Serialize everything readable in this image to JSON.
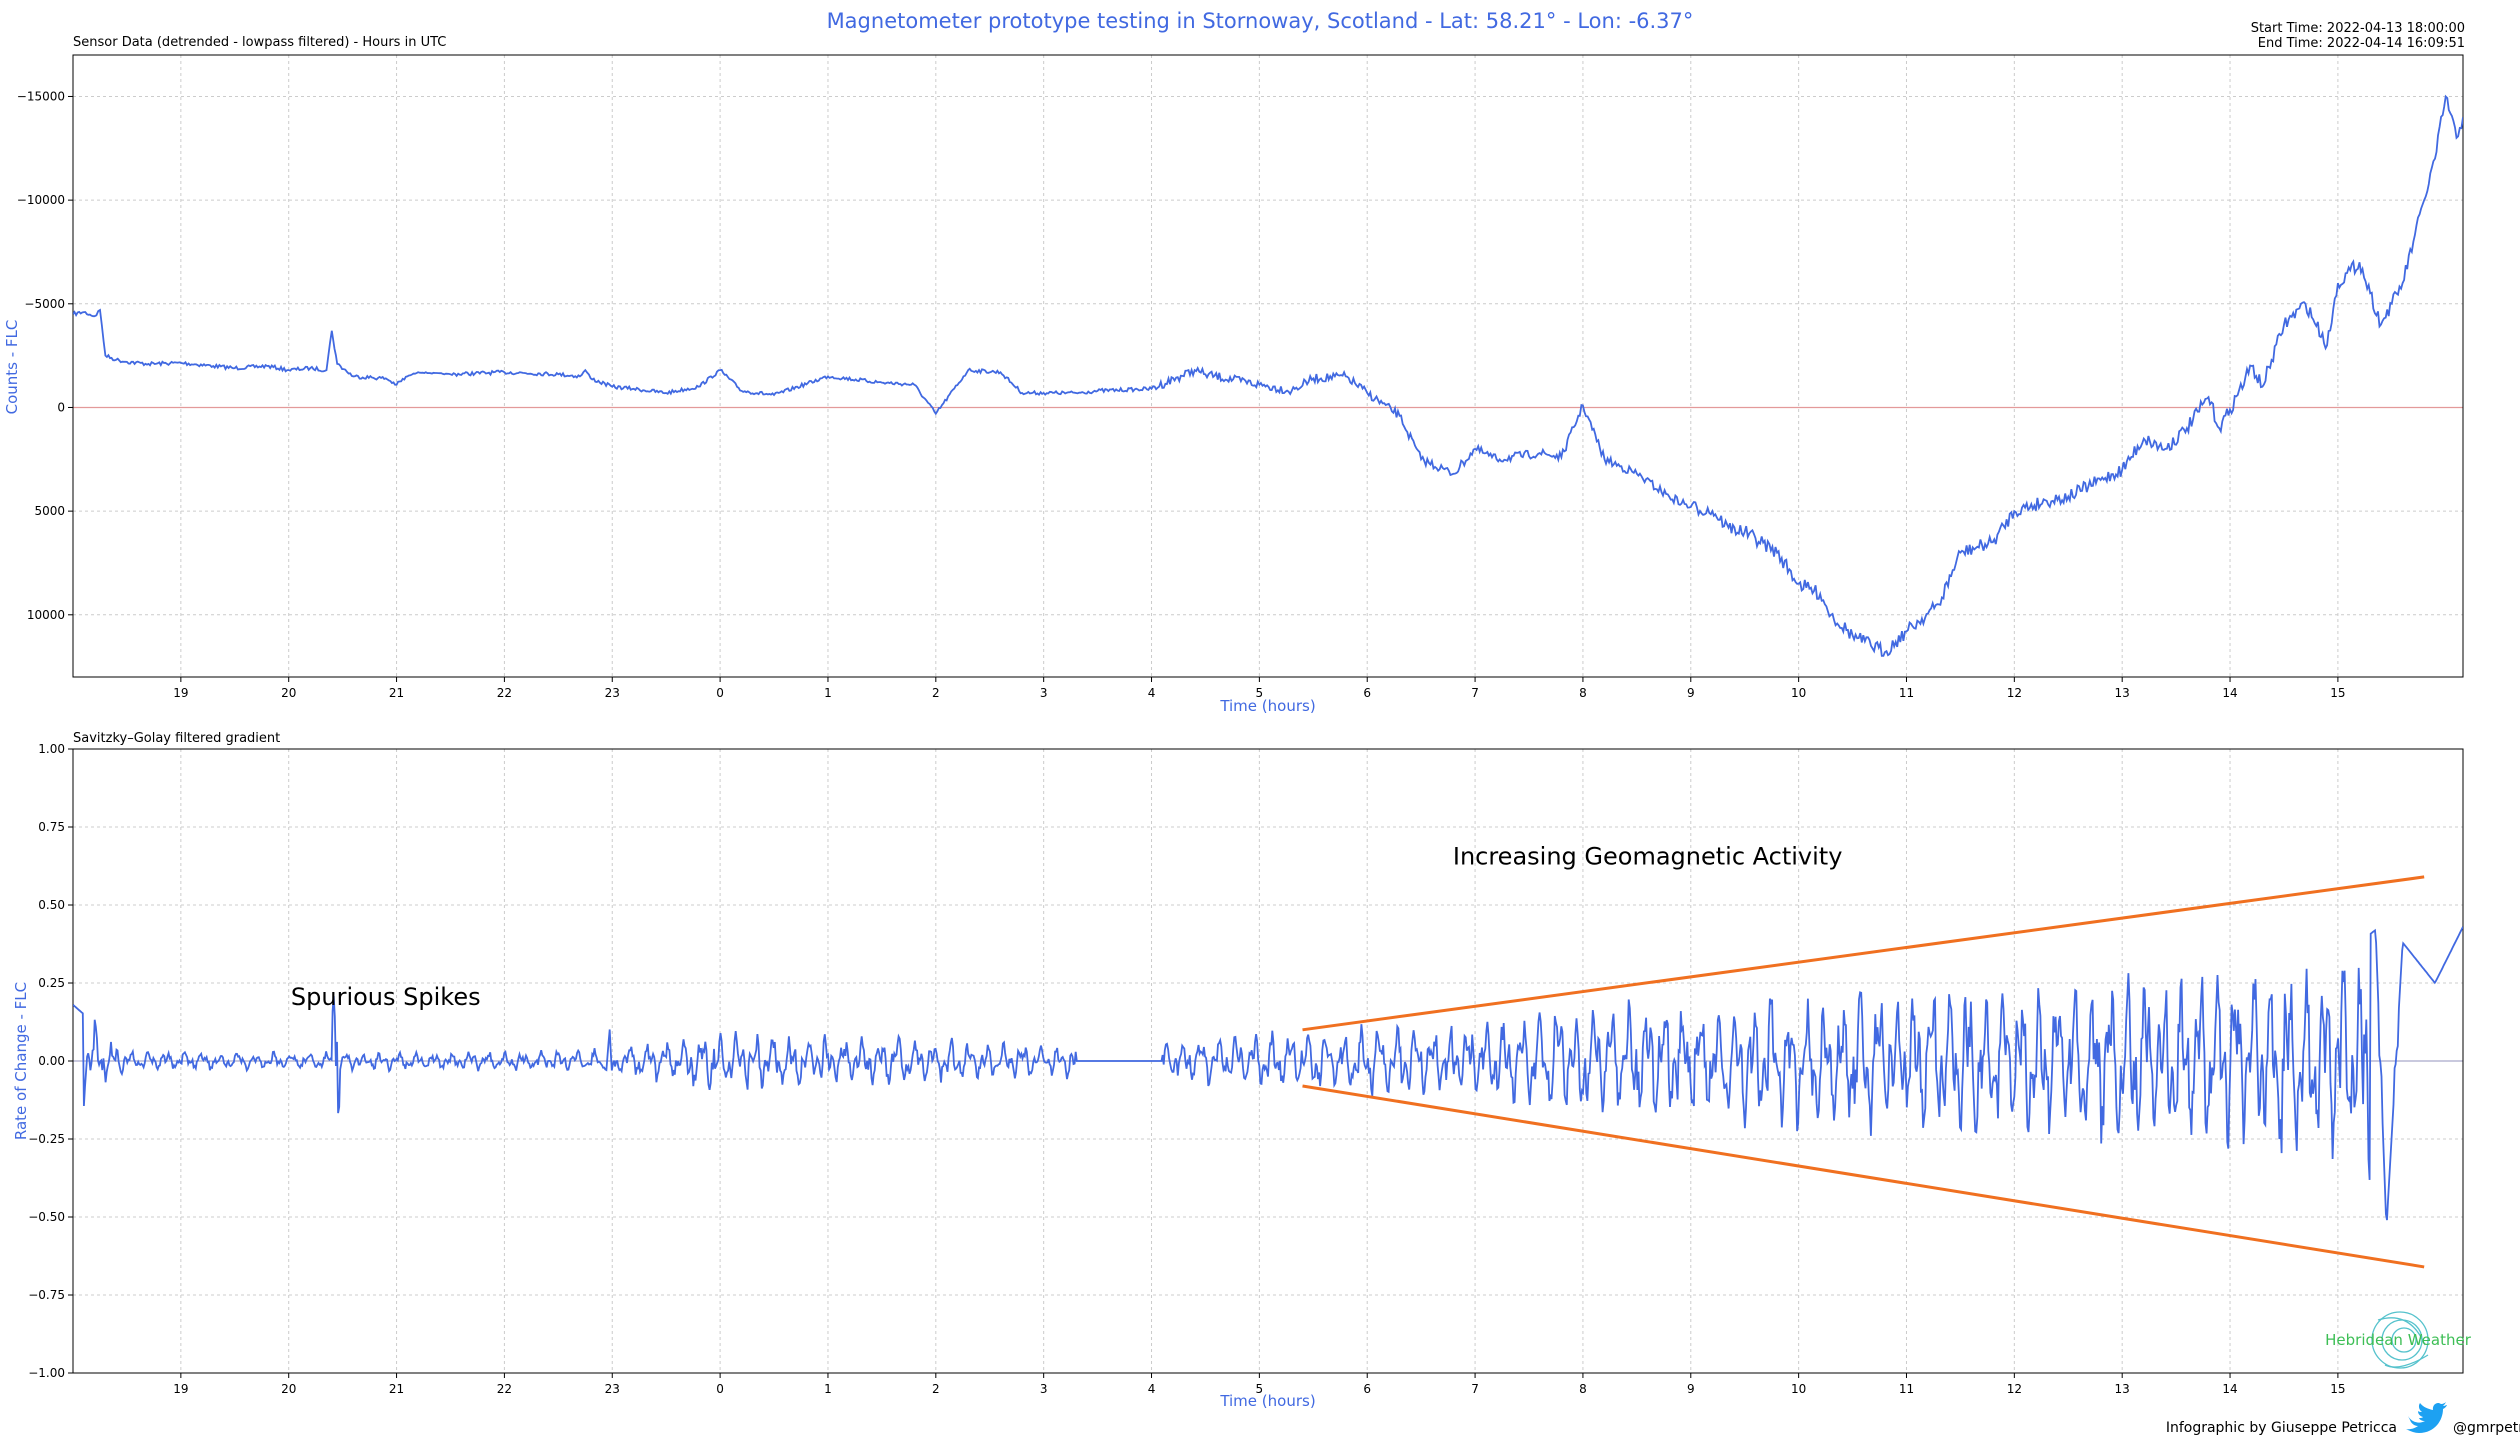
{
  "header": {
    "title": "Magnetometer prototype testing in Stornoway, Scotland - Lat: 58.21° - Lon: -6.37°",
    "start_time": "Start Time: 2022-04-13 18:00:00",
    "end_time": "End Time: 2022-04-14 16:09:51"
  },
  "footer": {
    "credit": "Infographic by Giuseppe Petricca",
    "handle": "@gmrpetricca",
    "logo_text": "Hebridean Weather"
  },
  "colors": {
    "title": "#4169E1",
    "series": "#4169E1",
    "annotation_lines": "#F07020",
    "zero_line_top": "#E39A9A",
    "zero_line_bottom": "#A9A9C9",
    "grid": "#CCCCCC",
    "logo": "#3DBE55",
    "twitter": "#1DA1F2"
  },
  "chart_data": [
    {
      "type": "line",
      "subtitle": "Sensor Data (detrended - lowpass filtered) - Hours in UTC",
      "xlabel": "Time (hours)",
      "ylabel": "Counts - FLC",
      "x_unit": "hours since 2022-04-13 18:00 UTC",
      "xlim": [
        0,
        22.16
      ],
      "ylim": [
        -17000,
        13000
      ],
      "y_inverted": true,
      "x_ticks": [
        1,
        2,
        3,
        4,
        5,
        6,
        7,
        8,
        9,
        10,
        11,
        12,
        13,
        14,
        15,
        16,
        17,
        18,
        19,
        20,
        21
      ],
      "x_tick_labels": [
        "19",
        "20",
        "21",
        "22",
        "23",
        "0",
        "1",
        "2",
        "3",
        "4",
        "5",
        "6",
        "7",
        "8",
        "9",
        "10",
        "11",
        "12",
        "13",
        "14",
        "15"
      ],
      "y_ticks": [
        -15000,
        -10000,
        -5000,
        0,
        5000,
        10000
      ],
      "y_tick_labels": [
        "−15000",
        "−10000",
        "−5000",
        "0",
        "5000",
        "10000"
      ],
      "grid": true,
      "series": [
        {
          "name": "",
          "x": [
            0,
            0.1,
            0.2,
            0.25,
            0.3,
            0.4,
            0.5,
            0.7,
            1.0,
            1.3,
            1.5,
            1.8,
            2.0,
            2.2,
            2.35,
            2.4,
            2.45,
            2.6,
            2.9,
            3.0,
            3.1,
            3.2,
            3.5,
            4.0,
            4.5,
            4.7,
            4.75,
            4.8,
            5.0,
            5.2,
            5.5,
            5.8,
            6.0,
            6.2,
            6.5,
            7.0,
            7.5,
            7.8,
            8.0,
            8.3,
            8.6,
            8.8,
            9.0,
            9.3,
            9.5,
            10.0,
            10.4,
            10.5,
            11.0,
            11.3,
            11.5,
            11.8,
            12.0,
            12.3,
            12.5,
            12.8,
            13.0,
            13.2,
            13.6,
            13.8,
            14.0,
            14.2,
            14.5,
            14.8,
            15.0,
            15.2,
            15.35,
            15.5,
            15.8,
            16.0,
            16.2,
            16.3,
            16.5,
            16.8,
            17.0,
            17.3,
            17.5,
            17.8,
            18.0,
            18.3,
            18.5,
            18.8,
            19.0,
            19.2,
            19.4,
            19.6,
            19.8,
            19.9,
            20.0,
            20.2,
            20.3,
            20.5,
            20.7,
            20.9,
            21.0,
            21.2,
            21.3,
            21.4,
            21.5,
            21.6,
            21.7,
            21.8,
            21.9,
            22.0,
            22.1,
            22.16
          ],
          "values": [
            -4500,
            -4600,
            -4400,
            -4700,
            -2500,
            -2300,
            -2200,
            -2100,
            -2150,
            -2000,
            -1900,
            -2000,
            -1800,
            -1900,
            -1800,
            -3700,
            -2100,
            -1500,
            -1400,
            -1100,
            -1500,
            -1700,
            -1600,
            -1700,
            -1600,
            -1500,
            -1800,
            -1400,
            -1000,
            -900,
            -700,
            -1000,
            -1800,
            -800,
            -600,
            -1500,
            -1200,
            -1100,
            300,
            -1800,
            -1700,
            -700,
            -700,
            -700,
            -800,
            -900,
            -1800,
            -1600,
            -1100,
            -800,
            -1400,
            -1500,
            -700,
            400,
            2500,
            3200,
            2000,
            2500,
            2200,
            2400,
            -100,
            2500,
            3200,
            4300,
            4800,
            5000,
            5800,
            6000,
            7000,
            8500,
            9000,
            10000,
            11000,
            11800,
            10800,
            9500,
            7000,
            6500,
            5000,
            4500,
            4300,
            3500,
            3000,
            1500,
            2000,
            1000,
            -500,
            1000,
            100,
            -2000,
            -1000,
            -4000,
            -5000,
            -3000,
            -6000,
            -7000,
            -5500,
            -4000,
            -5000,
            -6000,
            -8000,
            -10000,
            -12000,
            -15000,
            -13000,
            -14000
          ]
        }
      ]
    },
    {
      "type": "line",
      "subtitle": "Savitzky–Golay filtered gradient",
      "xlabel": "Time (hours)",
      "ylabel": "Rate of Change - FLC",
      "x_unit": "hours since 2022-04-13 18:00 UTC",
      "xlim": [
        0,
        22.16
      ],
      "ylim": [
        -1.0,
        1.0
      ],
      "x_ticks": [
        1,
        2,
        3,
        4,
        5,
        6,
        7,
        8,
        9,
        10,
        11,
        12,
        13,
        14,
        15,
        16,
        17,
        18,
        19,
        20,
        21
      ],
      "x_tick_labels": [
        "19",
        "20",
        "21",
        "22",
        "23",
        "0",
        "1",
        "2",
        "3",
        "4",
        "5",
        "6",
        "7",
        "8",
        "9",
        "10",
        "11",
        "12",
        "13",
        "14",
        "15"
      ],
      "y_ticks": [
        1.0,
        0.75,
        0.5,
        0.25,
        0.0,
        -0.25,
        -0.5,
        -0.75,
        -1.0
      ],
      "y_tick_labels": [
        "1.00",
        "0.75",
        "0.50",
        "0.25",
        "0.00",
        "−0.25",
        "−0.50",
        "−0.75",
        "−1.00"
      ],
      "grid": true,
      "gradient_envelope": [
        [
          0,
          0.18
        ],
        [
          0.5,
          0.03
        ],
        [
          2.38,
          0.03
        ],
        [
          2.42,
          0.22
        ],
        [
          2.46,
          -0.19
        ],
        [
          2.5,
          0.03
        ],
        [
          4.0,
          0.03
        ],
        [
          4.95,
          0.04
        ],
        [
          4.98,
          0.14
        ],
        [
          5.0,
          -0.15
        ],
        [
          5.05,
          0.05
        ],
        [
          6.0,
          0.1
        ],
        [
          8.0,
          0.07
        ],
        [
          9.0,
          0.05
        ],
        [
          10.0,
          0.06
        ],
        [
          11.0,
          0.09
        ],
        [
          12.0,
          0.11
        ],
        [
          13.0,
          0.12
        ],
        [
          14.0,
          0.18
        ],
        [
          15.0,
          0.2
        ],
        [
          15.5,
          0.21
        ],
        [
          16.0,
          0.22
        ],
        [
          17.0,
          0.24
        ],
        [
          18.0,
          0.25
        ],
        [
          19.0,
          0.28
        ],
        [
          20.0,
          0.3
        ],
        [
          21.0,
          0.33
        ],
        [
          21.35,
          0.42
        ],
        [
          21.45,
          -0.54
        ],
        [
          21.6,
          0.38
        ],
        [
          21.9,
          0.25
        ],
        [
          22.16,
          0.43
        ]
      ],
      "annotations": [
        {
          "text": "Spurious Spikes",
          "x": 2.9,
          "y": 0.18
        },
        {
          "text": "Increasing Geomagnetic Activity",
          "x": 14.6,
          "y": 0.63
        }
      ],
      "trend_lines": [
        {
          "x": [
            11.4,
            21.8
          ],
          "y": [
            0.1,
            0.59
          ]
        },
        {
          "x": [
            11.4,
            21.8
          ],
          "y": [
            -0.08,
            -0.66
          ]
        }
      ]
    }
  ]
}
